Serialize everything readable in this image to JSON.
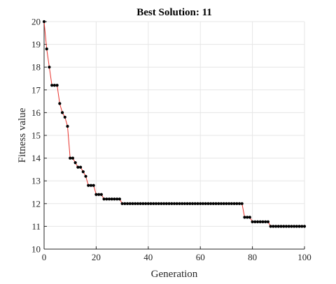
{
  "chart_data": {
    "type": "line",
    "title": "Best Solution: 11",
    "xlabel": "Generation",
    "ylabel": "Fitness value",
    "xlim": [
      0,
      100
    ],
    "ylim": [
      10,
      20
    ],
    "xticks": [
      0,
      20,
      40,
      60,
      80,
      100
    ],
    "yticks": [
      10,
      11,
      12,
      13,
      14,
      15,
      16,
      17,
      18,
      19,
      20
    ],
    "grid": true,
    "line_color": "#e8322c",
    "marker_color": "#000000",
    "x": [
      0,
      1,
      2,
      3,
      4,
      5,
      6,
      7,
      8,
      9,
      10,
      11,
      12,
      13,
      14,
      15,
      16,
      17,
      18,
      19,
      20,
      21,
      22,
      23,
      24,
      25,
      26,
      27,
      28,
      29,
      30,
      31,
      32,
      33,
      34,
      35,
      36,
      37,
      38,
      39,
      40,
      41,
      42,
      43,
      44,
      45,
      46,
      47,
      48,
      49,
      50,
      51,
      52,
      53,
      54,
      55,
      56,
      57,
      58,
      59,
      60,
      61,
      62,
      63,
      64,
      65,
      66,
      67,
      68,
      69,
      70,
      71,
      72,
      73,
      74,
      75,
      76,
      77,
      78,
      79,
      80,
      81,
      82,
      83,
      84,
      85,
      86,
      87,
      88,
      89,
      90,
      91,
      92,
      93,
      94,
      95,
      96,
      97,
      98,
      99,
      100
    ],
    "y": [
      20.0,
      18.8,
      18.0,
      17.2,
      17.2,
      17.2,
      16.4,
      16.0,
      15.8,
      15.4,
      14.0,
      14.0,
      13.8,
      13.6,
      13.6,
      13.4,
      13.2,
      12.8,
      12.8,
      12.8,
      12.4,
      12.4,
      12.4,
      12.2,
      12.2,
      12.2,
      12.2,
      12.2,
      12.2,
      12.2,
      12.0,
      12.0,
      12.0,
      12.0,
      12.0,
      12.0,
      12.0,
      12.0,
      12.0,
      12.0,
      12.0,
      12.0,
      12.0,
      12.0,
      12.0,
      12.0,
      12.0,
      12.0,
      12.0,
      12.0,
      12.0,
      12.0,
      12.0,
      12.0,
      12.0,
      12.0,
      12.0,
      12.0,
      12.0,
      12.0,
      12.0,
      12.0,
      12.0,
      12.0,
      12.0,
      12.0,
      12.0,
      12.0,
      12.0,
      12.0,
      12.0,
      12.0,
      12.0,
      12.0,
      12.0,
      12.0,
      12.0,
      11.4,
      11.4,
      11.4,
      11.2,
      11.2,
      11.2,
      11.2,
      11.2,
      11.2,
      11.2,
      11.0,
      11.0,
      11.0,
      11.0,
      11.0,
      11.0,
      11.0,
      11.0,
      11.0,
      11.0,
      11.0,
      11.0,
      11.0,
      11.0
    ]
  }
}
